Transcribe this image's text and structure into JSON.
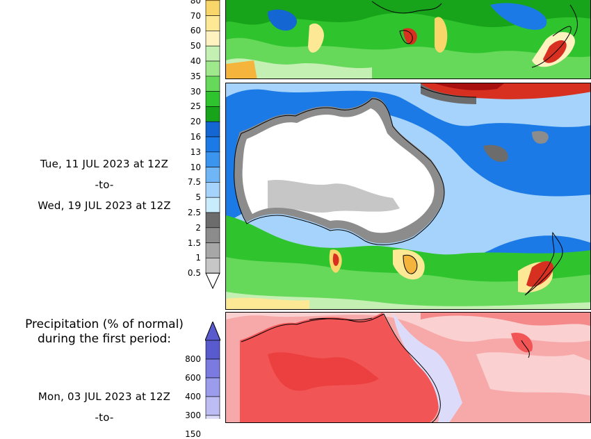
{
  "precip_colorbar": {
    "labels": [
      "80",
      "70",
      "60",
      "50",
      "40",
      "35",
      "30",
      "25",
      "20",
      "16",
      "13",
      "10",
      "7.5",
      "5",
      "2.5",
      "2",
      "1.5",
      "1",
      "0.5"
    ],
    "colors": [
      "#f5b43c",
      "#f9d66a",
      "#fde896",
      "#fdf2c0",
      "#c4f0b4",
      "#9fe88c",
      "#66d85a",
      "#2fc42e",
      "#17a31a",
      "#1466d2",
      "#1b7ae6",
      "#3b95ef",
      "#70b6f6",
      "#a6d3fb",
      "#c9ecfc",
      "#6c6c6c",
      "#8c8c8c",
      "#a7a7a7",
      "#c6c6c6"
    ]
  },
  "period2": {
    "line1": "Tue, 11 JUL 2023 at 12Z",
    "line2": "-to-",
    "line3": "Wed, 19 JUL 2023 at 12Z"
  },
  "percent_section": {
    "title_line1": "Precipitation (% of normal)",
    "title_line2": "during the first period:",
    "labels": [
      "800",
      "600",
      "400",
      "300",
      "150"
    ],
    "colors": [
      "#5a5acf",
      "#7a7ae0",
      "#9c9cec",
      "#bdbdf4",
      "#dcdcfa"
    ]
  },
  "period1": {
    "line1": "Mon, 03 JUL 2023 at 12Z",
    "line2": "-to-"
  }
}
